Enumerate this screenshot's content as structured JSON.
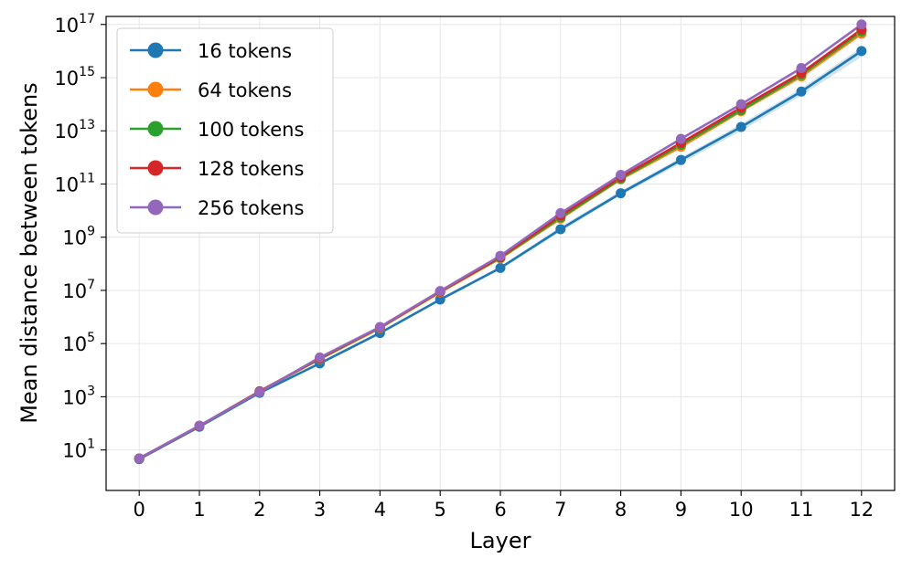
{
  "chart_data": {
    "type": "line",
    "xlabel": "Layer",
    "ylabel": "Mean distance between tokens",
    "yscale": "log",
    "ylim": [
      0.3,
      2e+17
    ],
    "xlim": [
      -0.55,
      12.55
    ],
    "x": [
      0,
      1,
      2,
      3,
      4,
      5,
      6,
      7,
      8,
      9,
      10,
      11,
      12
    ],
    "xtick_labels": [
      "0",
      "1",
      "2",
      "3",
      "4",
      "5",
      "6",
      "7",
      "8",
      "9",
      "10",
      "11",
      "12"
    ],
    "ytick_exponents": [
      "1",
      "3",
      "5",
      "7",
      "9",
      "11",
      "13",
      "15",
      "17"
    ],
    "ytick_base": "10",
    "grid": true,
    "legend_position": "upper-left",
    "series": [
      {
        "name": "16 tokens",
        "color": "#1f77b4",
        "values": [
          4.5,
          75,
          1400,
          18000,
          250000,
          4500000,
          70000000,
          2000000000,
          45000000000,
          800000000000,
          14000000000000,
          300000000000000,
          10000000000000000
        ],
        "band": [
          [
            4.3,
            4.8
          ],
          [
            70,
            80
          ],
          [
            1300,
            1500
          ],
          [
            16000,
            20000
          ],
          [
            220000,
            280000
          ],
          [
            4000000,
            5000000
          ],
          [
            60000000,
            80000000
          ],
          [
            1600000000,
            2500000000
          ],
          [
            37000000000,
            55000000000
          ],
          [
            600000000000,
            1000000000000
          ],
          [
            10000000000000,
            18000000000000
          ],
          [
            210000000000000,
            400000000000000
          ],
          [
            6000000000000000,
            14000000000000000
          ]
        ]
      },
      {
        "name": "64 tokens",
        "color": "#ff7f0e",
        "values": [
          4.8,
          80,
          1600,
          26000,
          380000,
          8500000,
          160000000,
          5000000000,
          150000000000,
          2500000000000,
          55000000000000,
          1100000000000000,
          45000000000000000
        ]
      },
      {
        "name": "100 tokens",
        "color": "#2ca02c",
        "values": [
          4.8,
          80,
          1600,
          27000,
          400000,
          9000000,
          170000000,
          5500000000,
          160000000000,
          3000000000000,
          60000000000000,
          1300000000000000,
          55000000000000000
        ]
      },
      {
        "name": "128 tokens",
        "color": "#d62728",
        "values": [
          4.8,
          80,
          1600,
          28000,
          410000,
          9000000,
          180000000,
          6500000000,
          180000000000,
          3500000000000,
          75000000000000,
          1500000000000000,
          65000000000000000
        ]
      },
      {
        "name": "256 tokens",
        "color": "#9467bd",
        "values": [
          4.8,
          82,
          1500,
          30000,
          420000,
          9500000,
          200000000,
          8000000000,
          220000000000,
          5000000000000,
          100000000000000,
          2300000000000000,
          100000000000000000
        ]
      }
    ]
  }
}
